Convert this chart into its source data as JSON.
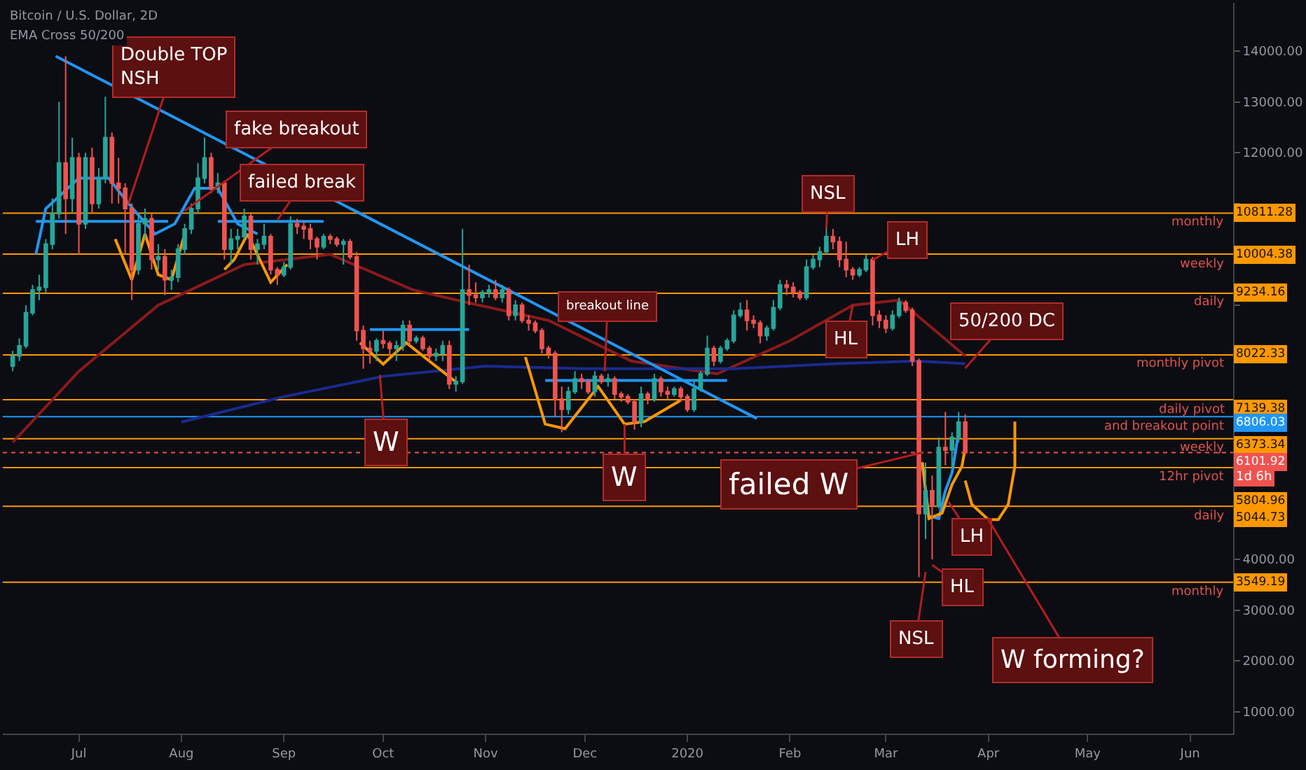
{
  "chart_data": {
    "type": "candlestick",
    "title": "Bitcoin / U.S. Dollar, 2D",
    "subtitle": "EMA Cross 50/200",
    "x": [
      "2019-06-11",
      "2019-06-13",
      "2019-06-15",
      "2019-06-17",
      "2019-06-19",
      "2019-06-21",
      "2019-06-23",
      "2019-06-25",
      "2019-06-27",
      "2019-06-29",
      "2019-07-01",
      "2019-07-03",
      "2019-07-05",
      "2019-07-07",
      "2019-07-09",
      "2019-07-11",
      "2019-07-13",
      "2019-07-15",
      "2019-07-17",
      "2019-07-19",
      "2019-07-21",
      "2019-07-23",
      "2019-07-25",
      "2019-07-27",
      "2019-07-29",
      "2019-07-31",
      "2019-08-02",
      "2019-08-04",
      "2019-08-06",
      "2019-08-08",
      "2019-08-10",
      "2019-08-12",
      "2019-08-14",
      "2019-08-16",
      "2019-08-18",
      "2019-08-20",
      "2019-08-22",
      "2019-08-24",
      "2019-08-26",
      "2019-08-28",
      "2019-08-30",
      "2019-09-01",
      "2019-09-03",
      "2019-09-05",
      "2019-09-07",
      "2019-09-09",
      "2019-09-11",
      "2019-09-13",
      "2019-09-15",
      "2019-09-17",
      "2019-09-19",
      "2019-09-21",
      "2019-09-23",
      "2019-09-25",
      "2019-09-27",
      "2019-09-29",
      "2019-10-01",
      "2019-10-03",
      "2019-10-05",
      "2019-10-07",
      "2019-10-09",
      "2019-10-11",
      "2019-10-13",
      "2019-10-15",
      "2019-10-17",
      "2019-10-19",
      "2019-10-21",
      "2019-10-23",
      "2019-10-25",
      "2019-10-27",
      "2019-10-29",
      "2019-10-31",
      "2019-11-02",
      "2019-11-04",
      "2019-11-06",
      "2019-11-08",
      "2019-11-10",
      "2019-11-12",
      "2019-11-14",
      "2019-11-16",
      "2019-11-18",
      "2019-11-20",
      "2019-11-22",
      "2019-11-24",
      "2019-11-26",
      "2019-11-28",
      "2019-11-30",
      "2019-12-02",
      "2019-12-04",
      "2019-12-06",
      "2019-12-08",
      "2019-12-10",
      "2019-12-12",
      "2019-12-14",
      "2019-12-16",
      "2019-12-18",
      "2019-12-20",
      "2019-12-22",
      "2019-12-24",
      "2019-12-26",
      "2019-12-28",
      "2019-12-30",
      "2020-01-01",
      "2020-01-03",
      "2020-01-05",
      "2020-01-07",
      "2020-01-09",
      "2020-01-11",
      "2020-01-13",
      "2020-01-15",
      "2020-01-17",
      "2020-01-19",
      "2020-01-21",
      "2020-01-23",
      "2020-01-25",
      "2020-01-27",
      "2020-01-29",
      "2020-01-31",
      "2020-02-02",
      "2020-02-04",
      "2020-02-06",
      "2020-02-08",
      "2020-02-10",
      "2020-02-12",
      "2020-02-14",
      "2020-02-16",
      "2020-02-18",
      "2020-02-20",
      "2020-02-22",
      "2020-02-24",
      "2020-02-26",
      "2020-02-28",
      "2020-03-01",
      "2020-03-03",
      "2020-03-05",
      "2020-03-07",
      "2020-03-09",
      "2020-03-11",
      "2020-03-13",
      "2020-03-15",
      "2020-03-17",
      "2020-03-19",
      "2020-03-21",
      "2020-03-23",
      "2020-03-25"
    ],
    "ohlc": [
      [
        7800,
        8100,
        7700,
        8000
      ],
      [
        8000,
        8350,
        7900,
        8200
      ],
      [
        8200,
        9000,
        8150,
        8850
      ],
      [
        8850,
        9400,
        8800,
        9300
      ],
      [
        9300,
        9600,
        9100,
        9350
      ],
      [
        9350,
        10300,
        9250,
        10200
      ],
      [
        10200,
        11100,
        10100,
        10800
      ],
      [
        10800,
        13000,
        10700,
        11800
      ],
      [
        11800,
        13900,
        10400,
        11100
      ],
      [
        11100,
        12300,
        10800,
        11900
      ],
      [
        11900,
        12000,
        10000,
        10600
      ],
      [
        10600,
        12000,
        10500,
        11900
      ],
      [
        11900,
        12100,
        10800,
        11000
      ],
      [
        11000,
        11700,
        10900,
        11500
      ],
      [
        11500,
        13100,
        11400,
        12300
      ],
      [
        12300,
        12400,
        11000,
        11400
      ],
      [
        11400,
        11900,
        11000,
        11300
      ],
      [
        11300,
        11400,
        10000,
        10900
      ],
      [
        10900,
        11000,
        9100,
        9700
      ],
      [
        9700,
        10800,
        9600,
        10600
      ],
      [
        10600,
        10900,
        10300,
        10700
      ],
      [
        10700,
        10800,
        9700,
        9900
      ],
      [
        9900,
        10200,
        9700,
        9950
      ],
      [
        9950,
        10100,
        9200,
        9500
      ],
      [
        9500,
        9700,
        9300,
        9550
      ],
      [
        9550,
        10200,
        9450,
        10100
      ],
      [
        10100,
        10600,
        10000,
        10500
      ],
      [
        10500,
        11000,
        10400,
        10900
      ],
      [
        10900,
        11800,
        10800,
        11500
      ],
      [
        11500,
        12300,
        11400,
        11900
      ],
      [
        11900,
        12000,
        11200,
        11300
      ],
      [
        11300,
        11600,
        11200,
        11400
      ],
      [
        11400,
        11450,
        9900,
        10100
      ],
      [
        10100,
        10500,
        9800,
        10300
      ],
      [
        10300,
        10500,
        10100,
        10350
      ],
      [
        10350,
        10900,
        10300,
        10750
      ],
      [
        10750,
        10800,
        9900,
        10100
      ],
      [
        10100,
        10300,
        9800,
        10200
      ],
      [
        10200,
        10600,
        10100,
        10350
      ],
      [
        10350,
        10400,
        9600,
        9700
      ],
      [
        9700,
        9750,
        9400,
        9600
      ],
      [
        9600,
        9850,
        9550,
        9750
      ],
      [
        9750,
        10750,
        9700,
        10600
      ],
      [
        10600,
        10700,
        10400,
        10550
      ],
      [
        10550,
        10650,
        10300,
        10500
      ],
      [
        10500,
        10600,
        10100,
        10300
      ],
      [
        10300,
        10350,
        9900,
        10150
      ],
      [
        10150,
        10400,
        10100,
        10350
      ],
      [
        10350,
        10400,
        10200,
        10300
      ],
      [
        10300,
        10350,
        10150,
        10200
      ],
      [
        10200,
        10300,
        9800,
        10250
      ],
      [
        10250,
        10300,
        9900,
        9950
      ],
      [
        9950,
        10050,
        8300,
        8500
      ],
      [
        8500,
        8600,
        7750,
        8150
      ],
      [
        8150,
        8300,
        7850,
        8100
      ],
      [
        8100,
        8350,
        7900,
        8300
      ],
      [
        8300,
        8500,
        8150,
        8250
      ],
      [
        8250,
        8300,
        8000,
        8150
      ],
      [
        8150,
        8300,
        7900,
        8200
      ],
      [
        8200,
        8700,
        8100,
        8600
      ],
      [
        8600,
        8700,
        8200,
        8300
      ],
      [
        8300,
        8400,
        8250,
        8350
      ],
      [
        8350,
        8400,
        8100,
        8150
      ],
      [
        8150,
        8200,
        7900,
        8000
      ],
      [
        8000,
        8150,
        7900,
        8050
      ],
      [
        8050,
        8300,
        7900,
        8200
      ],
      [
        8200,
        8300,
        7350,
        7450
      ],
      [
        7450,
        7600,
        7300,
        7500
      ],
      [
        7500,
        10500,
        7450,
        9300
      ],
      [
        9300,
        9800,
        9000,
        9200
      ],
      [
        9200,
        9450,
        9050,
        9150
      ],
      [
        9150,
        9300,
        9050,
        9250
      ],
      [
        9250,
        9400,
        9150,
        9300
      ],
      [
        9300,
        9500,
        9100,
        9150
      ],
      [
        9150,
        9400,
        9050,
        9300
      ],
      [
        9300,
        9350,
        8700,
        8800
      ],
      [
        8800,
        9100,
        8700,
        9000
      ],
      [
        9000,
        9050,
        8650,
        8700
      ],
      [
        8700,
        8800,
        8500,
        8650
      ],
      [
        8650,
        8700,
        8450,
        8500
      ],
      [
        8500,
        8550,
        8050,
        8150
      ],
      [
        8150,
        8200,
        7950,
        8050
      ],
      [
        8050,
        8100,
        6800,
        7150
      ],
      [
        7150,
        7400,
        6500,
        6950
      ],
      [
        6950,
        7400,
        6850,
        7300
      ],
      [
        7300,
        7700,
        7250,
        7550
      ],
      [
        7550,
        7650,
        7350,
        7500
      ],
      [
        7500,
        7550,
        7250,
        7300
      ],
      [
        7300,
        7700,
        7200,
        7600
      ],
      [
        7600,
        7650,
        7450,
        7500
      ],
      [
        7500,
        7650,
        7400,
        7550
      ],
      [
        7550,
        7600,
        7150,
        7250
      ],
      [
        7250,
        7300,
        7100,
        7200
      ],
      [
        7200,
        7250,
        7050,
        7100
      ],
      [
        7100,
        7150,
        6550,
        6700
      ],
      [
        6700,
        7400,
        6600,
        7250
      ],
      [
        7250,
        7300,
        7050,
        7150
      ],
      [
        7150,
        7650,
        7100,
        7550
      ],
      [
        7550,
        7600,
        7200,
        7300
      ],
      [
        7300,
        7400,
        7150,
        7250
      ],
      [
        7250,
        7400,
        7200,
        7350
      ],
      [
        7350,
        7400,
        7100,
        7200
      ],
      [
        7200,
        7250,
        6900,
        6950
      ],
      [
        6950,
        7500,
        6900,
        7350
      ],
      [
        7350,
        7700,
        7300,
        7650
      ],
      [
        7650,
        8400,
        7600,
        8150
      ],
      [
        8150,
        8200,
        7800,
        7900
      ],
      [
        7900,
        8200,
        7850,
        8150
      ],
      [
        8150,
        8350,
        8100,
        8300
      ],
      [
        8300,
        8900,
        8250,
        8800
      ],
      [
        8800,
        9050,
        8750,
        8900
      ],
      [
        8900,
        9100,
        8500,
        8700
      ],
      [
        8700,
        8800,
        8550,
        8650
      ],
      [
        8650,
        8700,
        8250,
        8400
      ],
      [
        8400,
        8600,
        8300,
        8550
      ],
      [
        8550,
        9100,
        8500,
        8950
      ],
      [
        8950,
        9500,
        8900,
        9400
      ],
      [
        9400,
        9500,
        9200,
        9350
      ],
      [
        9350,
        9450,
        9150,
        9250
      ],
      [
        9250,
        9300,
        9100,
        9150
      ],
      [
        9150,
        9900,
        9100,
        9750
      ],
      [
        9750,
        10000,
        9700,
        9900
      ],
      [
        9900,
        10150,
        9750,
        10050
      ],
      [
        10050,
        10500,
        10000,
        10350
      ],
      [
        10350,
        10500,
        10100,
        10250
      ],
      [
        10250,
        10350,
        9750,
        9900
      ],
      [
        9900,
        10250,
        9550,
        9700
      ],
      [
        9700,
        9750,
        9500,
        9600
      ],
      [
        9600,
        9750,
        9550,
        9700
      ],
      [
        9700,
        10000,
        9650,
        9900
      ],
      [
        9900,
        9950,
        8600,
        8800
      ],
      [
        8800,
        8900,
        8550,
        8700
      ],
      [
        8700,
        8800,
        8450,
        8550
      ],
      [
        8550,
        8900,
        8500,
        8800
      ],
      [
        8800,
        9150,
        8750,
        9050
      ],
      [
        9050,
        9100,
        8850,
        8900
      ],
      [
        8900,
        8950,
        7800,
        7900
      ],
      [
        7900,
        7950,
        3650,
        4900
      ],
      [
        4900,
        5900,
        4400,
        5350
      ],
      [
        5350,
        5650,
        4000,
        5050
      ],
      [
        5050,
        6400,
        5000,
        6200
      ],
      [
        6200,
        6900,
        5850,
        6150
      ],
      [
        6150,
        6500,
        5800,
        6400
      ],
      [
        6400,
        6900,
        6300,
        6700
      ],
      [
        6700,
        6850,
        6050,
        6101.92
      ]
    ],
    "series": [
      {
        "type": "line",
        "color": "#8b1a1a",
        "x": [
          "2019-06-11",
          "2019-07-01",
          "2019-07-25",
          "2019-08-20",
          "2019-09-15",
          "2019-10-10",
          "2019-10-30",
          "2019-11-20",
          "2019-12-15",
          "2020-01-10",
          "2020-02-01",
          "2020-02-20",
          "2020-03-05",
          "2020-03-25"
        ],
        "values": [
          6300,
          7700,
          9000,
          9800,
          10000,
          9300,
          9000,
          8700,
          7900,
          7650,
          8300,
          9000,
          9100,
          8000
        ]
      },
      {
        "type": "line",
        "color": "#1a2a8e",
        "x": [
          "2019-08-01",
          "2019-09-01",
          "2019-10-01",
          "2019-11-01",
          "2019-12-01",
          "2020-01-15",
          "2020-02-15",
          "2020-03-10",
          "2020-03-25"
        ],
        "values": [
          6700,
          7200,
          7600,
          7800,
          7750,
          7750,
          7850,
          7900,
          7850
        ]
      },
      {
        "type": "line",
        "color": "#2196f3",
        "x": [
          "2019-06-24",
          "2020-01-22"
        ],
        "values": [
          13900,
          6770
        ]
      },
      {
        "type": "line",
        "color": "#2196f3",
        "x": [
          "2019-06-18",
          "2019-07-28"
        ],
        "values": [
          10650,
          10650
        ]
      },
      {
        "type": "line",
        "color": "#2196f3",
        "x": [
          "2019-08-12",
          "2019-09-13"
        ],
        "values": [
          10650,
          10650
        ]
      },
      {
        "type": "line",
        "color": "#2196f3",
        "x": [
          "2019-09-27",
          "2019-10-27"
        ],
        "values": [
          8520,
          8520
        ]
      },
      {
        "type": "line",
        "color": "#2196f3",
        "x": [
          "2019-11-19",
          "2020-01-13"
        ],
        "values": [
          7520,
          7520
        ]
      },
      {
        "type": "line",
        "color": "#2196f3",
        "x": [
          "2019-06-18",
          "2019-06-21",
          "2019-07-01",
          "2019-07-10",
          "2019-07-16",
          "2019-07-24",
          "2019-07-30",
          "2019-08-05",
          "2019-08-12",
          "2019-08-18",
          "2019-08-24"
        ],
        "values": [
          10000,
          10900,
          11500,
          11500,
          11000,
          10400,
          10600,
          11300,
          11300,
          10600,
          10400
        ]
      },
      {
        "type": "line",
        "color": "#ff9800",
        "x": [
          "2019-07-12",
          "2019-07-17",
          "2019-07-21",
          "2019-07-25",
          "2019-07-29",
          "2019-08-02"
        ],
        "values": [
          10300,
          9500,
          10400,
          9600,
          9500,
          10400
        ]
      },
      {
        "type": "line",
        "color": "#ff9800",
        "x": [
          "2019-08-14",
          "2019-08-17",
          "2019-08-21",
          "2019-08-28",
          "2019-09-02"
        ],
        "values": [
          9700,
          9900,
          10400,
          9450,
          9800
        ]
      },
      {
        "type": "line",
        "color": "#ff9800",
        "x": [
          "2019-09-24",
          "2019-10-01",
          "2019-10-08",
          "2019-10-14",
          "2019-10-23"
        ],
        "values": [
          8260,
          7840,
          8260,
          7950,
          7490
        ]
      },
      {
        "type": "line",
        "color": "#ff9800",
        "x": [
          "2019-11-13",
          "2019-11-19",
          "2019-11-25",
          "2019-12-05",
          "2019-12-13",
          "2019-12-19",
          "2019-12-30"
        ],
        "values": [
          7980,
          6660,
          6570,
          7400,
          6660,
          6710,
          7130
        ]
      },
      {
        "type": "line",
        "color": "#2196f3",
        "x": [
          "2020-03-12",
          "2020-03-14",
          "2020-03-17",
          "2020-03-19",
          "2020-03-21",
          "2020-03-23"
        ],
        "values": [
          5900,
          4850,
          4800,
          5350,
          5700,
          6500
        ]
      },
      {
        "type": "line",
        "color": "#ff9800",
        "x": [
          "2020-03-12",
          "2020-03-14",
          "2020-03-18",
          "2020-03-21",
          "2020-03-24",
          "2020-03-25"
        ],
        "values": [
          5910,
          4800,
          4910,
          5470,
          5830,
          6190
        ]
      },
      {
        "type": "line",
        "color": "#ff9800",
        "x": [
          "2020-03-25",
          "2020-03-27",
          "2020-04-01",
          "2020-04-04",
          "2020-04-07",
          "2020-04-09",
          "2020-04-09"
        ],
        "values": [
          5550,
          5080,
          4780,
          4780,
          5080,
          5830,
          6710
        ]
      }
    ],
    "ref_lines": [
      {
        "axis": "y",
        "value": 10811.28,
        "label": "monthly",
        "color": "#ff9800"
      },
      {
        "axis": "y",
        "value": 10004.38,
        "label": "weekly",
        "color": "#ff9800"
      },
      {
        "axis": "y",
        "value": 9234.16,
        "label": "daily",
        "color": "#ff9800"
      },
      {
        "axis": "y",
        "value": 8022.33,
        "label": "monthly pivot",
        "color": "#ff9800"
      },
      {
        "axis": "y",
        "value": 7139.38,
        "label": "daily pivot",
        "color": "#ff9800"
      },
      {
        "axis": "y",
        "value": 6806.03,
        "label": "and breakout point",
        "color": "#2196f3"
      },
      {
        "axis": "y",
        "value": 6373.34,
        "label": "weekly",
        "color": "#ff9800"
      },
      {
        "axis": "y",
        "value": 6101.92,
        "label": null,
        "color": "#ef5350",
        "line_style": "dotted"
      },
      {
        "axis": "y",
        "value": 5804.96,
        "label": "12hr pivot",
        "color": "#ff9800"
      },
      {
        "axis": "y",
        "value": 5044.73,
        "label": "daily",
        "color": "#ff9800"
      },
      {
        "axis": "y",
        "value": 3549.19,
        "label": "monthly",
        "color": "#ff9800"
      }
    ],
    "annotations": [
      {
        "text": "Double TOP\nNSH",
        "x": "2019-07-16",
        "y": 11000
      },
      {
        "text": "fake breakout",
        "x": "2019-08-02",
        "y": 10860
      },
      {
        "text": "failed break",
        "x": "2019-08-30",
        "y": 10670
      },
      {
        "text": "W",
        "x": "2019-09-30",
        "y": 7630
      },
      {
        "text": "breakout line",
        "x": "2019-12-07",
        "y": 7700
      },
      {
        "text": "W",
        "x": "2019-12-13",
        "y": 6660
      },
      {
        "text": "NSL",
        "x": "2020-02-12",
        "y": 10500
      },
      {
        "text": "LH",
        "x": "2020-02-26",
        "y": 9890
      },
      {
        "text": "HL",
        "x": "2020-02-20",
        "y": 9000
      },
      {
        "text": "50/200 DC",
        "x": "2020-03-25",
        "y": 7760
      },
      {
        "text": "failed W",
        "x": "2020-03-12",
        "y": 6100
      },
      {
        "text": "LH",
        "x": "2020-03-20",
        "y": 5130
      },
      {
        "text": "HL",
        "x": "2020-03-15",
        "y": 3890
      },
      {
        "text": "NSL",
        "x": "2020-03-13",
        "y": 3750
      },
      {
        "text": "W forming?",
        "x": "2020-04-01",
        "y": 4780
      },
      "10811.28",
      "10004.38",
      "9234.16",
      "8022.33",
      "7139.38",
      "6806.03",
      "6373.34",
      "6101.92",
      "5804.96",
      "5044.73",
      "3549.19",
      "1d 6h"
    ],
    "xlim": [
      "2019-06-08",
      "2020-06-14"
    ],
    "xticks": [
      {
        "value": "2019-07-01",
        "label": "Jul"
      },
      {
        "value": "2019-08-01",
        "label": "Aug"
      },
      {
        "value": "2019-09-01",
        "label": "Sep"
      },
      {
        "value": "2019-10-01",
        "label": "Oct"
      },
      {
        "value": "2019-11-01",
        "label": "Nov"
      },
      {
        "value": "2019-12-01",
        "label": "Dec"
      },
      {
        "value": "2020-01-01",
        "label": "2020"
      },
      {
        "value": "2020-02-01",
        "label": "Feb"
      },
      {
        "value": "2020-03-01",
        "label": "Mar"
      },
      {
        "value": "2020-04-01",
        "label": "Apr"
      },
      {
        "value": "2020-05-01",
        "label": "May"
      },
      {
        "value": "2020-06-01",
        "label": "Jun"
      }
    ],
    "ylim": [
      570,
      14950
    ],
    "yticks": [
      {
        "value": 1000,
        "label": "1000.00"
      },
      {
        "value": 2000,
        "label": "2000.00"
      },
      {
        "value": 3000,
        "label": "3000.00"
      },
      {
        "value": 4000,
        "label": "4000.00"
      },
      {
        "value": 5000,
        "label": null
      },
      {
        "value": 6000,
        "label": null
      },
      {
        "value": 7000,
        "label": null
      },
      {
        "value": 8000,
        "label": null
      },
      {
        "value": 9000,
        "label": null
      },
      {
        "value": 10000,
        "label": null
      },
      {
        "value": 11000,
        "label": null
      },
      {
        "value": 12000,
        "label": "12000.00"
      },
      {
        "value": 13000,
        "label": "13000.00"
      },
      {
        "value": 14000,
        "label": "14000.00"
      }
    ],
    "grid": false
  }
}
